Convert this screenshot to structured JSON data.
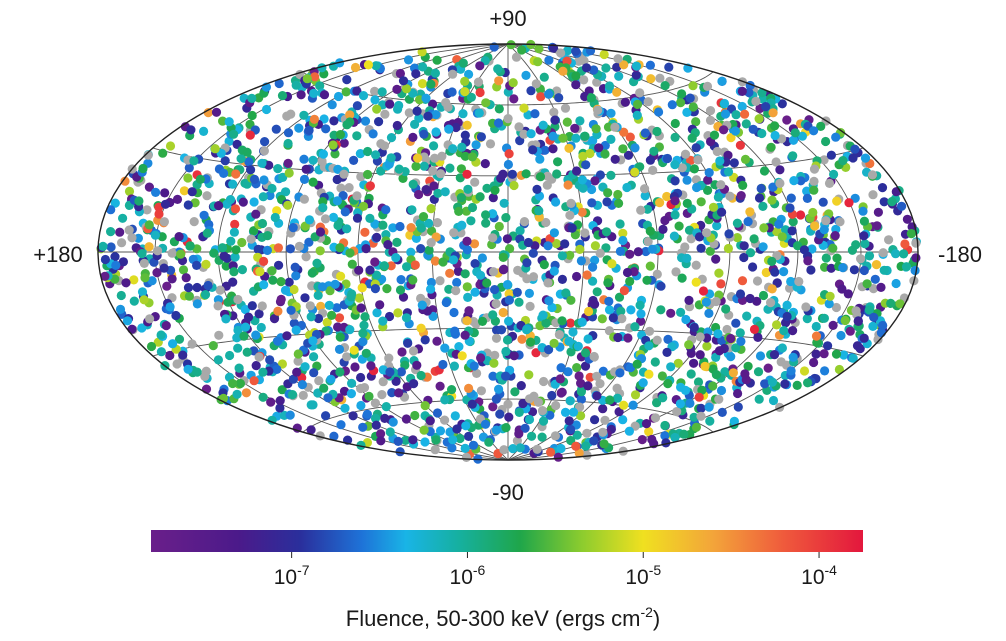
{
  "chart_data": {
    "type": "scatter",
    "projection": "aitoff-hammer all-sky",
    "title": "",
    "pole_labels": {
      "top": "+90",
      "bottom": "-90"
    },
    "edge_labels": {
      "left": "+180",
      "right": "-180"
    },
    "grid": true,
    "xlim": [
      180,
      -180
    ],
    "ylim": [
      -90,
      90
    ],
    "meridians_deg": [
      -150,
      -120,
      -90,
      -60,
      -30,
      0,
      30,
      60,
      90,
      120,
      150
    ],
    "parallels_deg": [
      -60,
      -30,
      0,
      30,
      60
    ],
    "colorbar": {
      "placement": "bottom",
      "label_text": "Fluence, 50-300 keV (ergs cm",
      "label_sup": "-2",
      "label_close": ")",
      "range_log10": [
        -7.8,
        -3.75
      ],
      "ticks": [
        {
          "base": "10",
          "exp": "-7",
          "value_log10": -7
        },
        {
          "base": "10",
          "exp": "-6",
          "value_log10": -6
        },
        {
          "base": "10",
          "exp": "-5",
          "value_log10": -5
        },
        {
          "base": "10",
          "exp": "-4",
          "value_log10": -4
        }
      ],
      "stops": [
        {
          "value_log10": -7.8,
          "color": "#6a1f8a"
        },
        {
          "value_log10": -7.3,
          "color": "#4b1a8a"
        },
        {
          "value_log10": -6.95,
          "color": "#2a2f9c"
        },
        {
          "value_log10": -6.6,
          "color": "#1e73d8"
        },
        {
          "value_log10": -6.35,
          "color": "#19b4e6"
        },
        {
          "value_log10": -6.05,
          "color": "#16b0a0"
        },
        {
          "value_log10": -5.7,
          "color": "#1fa64a"
        },
        {
          "value_log10": -5.35,
          "color": "#8ccc2e"
        },
        {
          "value_log10": -5.0,
          "color": "#f0e020"
        },
        {
          "value_log10": -4.6,
          "color": "#f3a43a"
        },
        {
          "value_log10": -4.2,
          "color": "#ef5a3c"
        },
        {
          "value_log10": -3.75,
          "color": "#e3173d"
        }
      ]
    },
    "point_count": 2704,
    "point_size_note": "uniform dots",
    "unmeasured_color": "#a9a9a9",
    "sampling": {
      "fraction_unmeasured": 0.13,
      "fluence_log10_range": [
        -7.8,
        -3.75
      ],
      "fluence_log10_mode": -6.2
    }
  }
}
